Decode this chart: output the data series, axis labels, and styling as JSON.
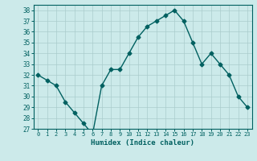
{
  "x": [
    0,
    1,
    2,
    3,
    4,
    5,
    6,
    7,
    8,
    9,
    10,
    11,
    12,
    13,
    14,
    15,
    16,
    17,
    18,
    19,
    20,
    21,
    22,
    23
  ],
  "y": [
    32,
    31.5,
    31,
    29.5,
    28.5,
    27.5,
    26.5,
    31,
    32.5,
    32.5,
    34,
    35.5,
    36.5,
    37,
    37.5,
    38,
    37,
    35,
    33,
    34,
    33,
    32,
    30,
    29
  ],
  "line_color": "#006060",
  "marker": "D",
  "markersize": 2.5,
  "linewidth": 1.0,
  "background_color": "#cceaea",
  "grid_color": "#aacccc",
  "xlabel": "Humidex (Indice chaleur)",
  "ylim": [
    27,
    38.5
  ],
  "yticks": [
    27,
    28,
    29,
    30,
    31,
    32,
    33,
    34,
    35,
    36,
    37,
    38
  ],
  "xticks": [
    0,
    1,
    2,
    3,
    4,
    5,
    6,
    7,
    8,
    9,
    10,
    11,
    12,
    13,
    14,
    15,
    16,
    17,
    18,
    19,
    20,
    21,
    22,
    23
  ]
}
